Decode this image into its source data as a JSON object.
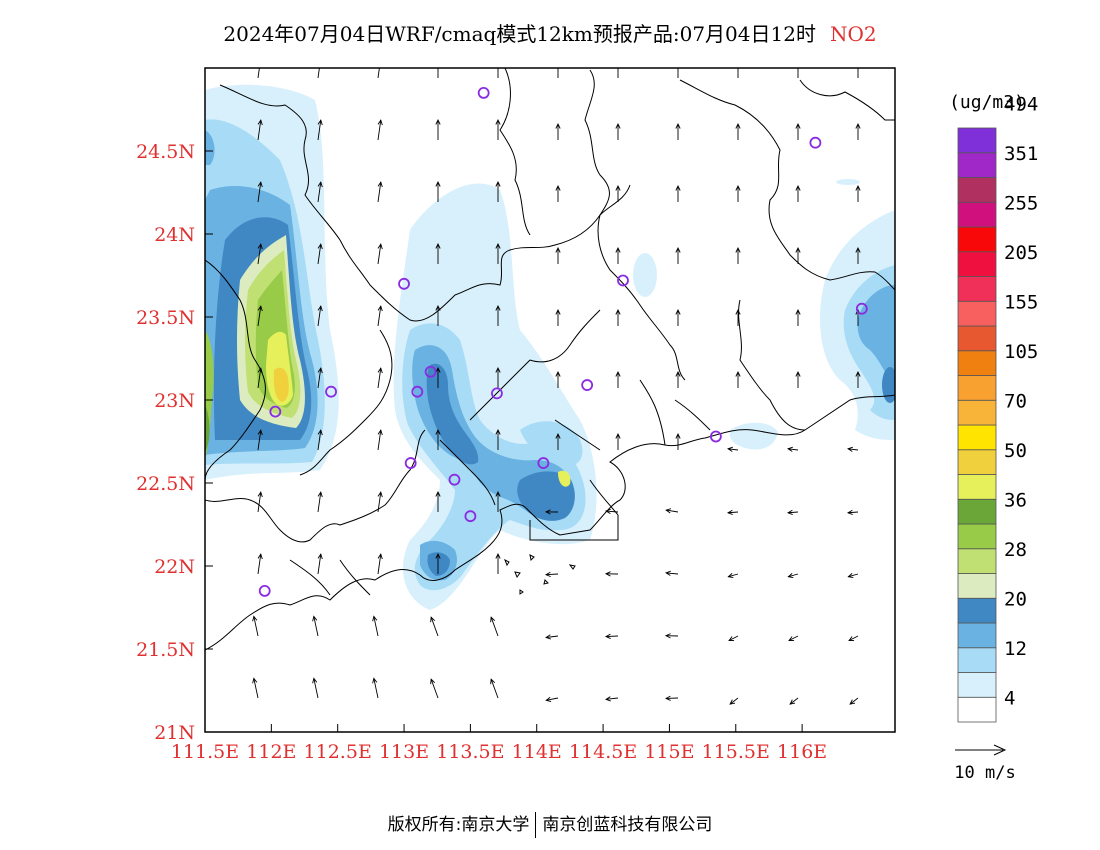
{
  "title": {
    "text": "2024年07月04日WRF/cmaq模式12km预报产品:07月04日12时",
    "pollutant": "NO2"
  },
  "footer": {
    "left": "版权所有:南京大学",
    "right": "南京创蓝科技有限公司"
  },
  "map": {
    "lon_range": [
      111.5,
      116.7
    ],
    "lat_range": [
      21.0,
      25.0
    ],
    "x_ticks": [
      "111.5E",
      "112E",
      "112.5E",
      "113E",
      "113.5E",
      "114E",
      "114.5E",
      "115E",
      "115.5E",
      "116E"
    ],
    "x_tick_values": [
      111.5,
      112,
      112.5,
      113,
      113.5,
      114,
      114.5,
      115,
      115.5,
      116
    ],
    "y_ticks": [
      "21N",
      "21.5N",
      "22N",
      "22.5N",
      "23N",
      "23.5N",
      "24N",
      "24.5N"
    ],
    "y_tick_values": [
      21,
      21.5,
      22,
      22.5,
      23,
      23.5,
      24,
      24.5
    ],
    "tick_label_color": "#e03030",
    "stations": [
      {
        "lon": 113.6,
        "lat": 24.85
      },
      {
        "lon": 116.1,
        "lat": 24.55
      },
      {
        "lon": 113.0,
        "lat": 23.7
      },
      {
        "lon": 114.65,
        "lat": 23.72
      },
      {
        "lon": 116.45,
        "lat": 23.55
      },
      {
        "lon": 113.2,
        "lat": 23.17
      },
      {
        "lon": 113.1,
        "lat": 23.05
      },
      {
        "lon": 113.7,
        "lat": 23.04
      },
      {
        "lon": 114.38,
        "lat": 23.09
      },
      {
        "lon": 112.45,
        "lat": 23.05
      },
      {
        "lon": 112.03,
        "lat": 22.93
      },
      {
        "lon": 115.35,
        "lat": 22.78
      },
      {
        "lon": 113.05,
        "lat": 22.62
      },
      {
        "lon": 113.38,
        "lat": 22.52
      },
      {
        "lon": 114.05,
        "lat": 22.62
      },
      {
        "lon": 113.5,
        "lat": 22.3
      },
      {
        "lon": 111.95,
        "lat": 21.85
      }
    ],
    "wind_reference": "10 m/s"
  },
  "legend": {
    "unit": "(ug/m3)",
    "labels": [
      "4",
      "12",
      "20",
      "28",
      "36",
      "50",
      "70",
      "105",
      "155",
      "205",
      "255",
      "351",
      "494"
    ],
    "colors": [
      "#ffffff",
      "#d8f0fc",
      "#a8dcf6",
      "#6ab2e2",
      "#4088c4",
      "#dcecc0",
      "#c0e074",
      "#98cc48",
      "#6aa638",
      "#e6f05a",
      "#f0d03c",
      "#ffe400",
      "#f8b438",
      "#f8a030",
      "#f08010",
      "#e85830",
      "#f86060",
      "#f03058",
      "#f01040",
      "#f80808",
      "#d0107c",
      "#b03060",
      "#a028c8",
      "#8030d8"
    ]
  }
}
